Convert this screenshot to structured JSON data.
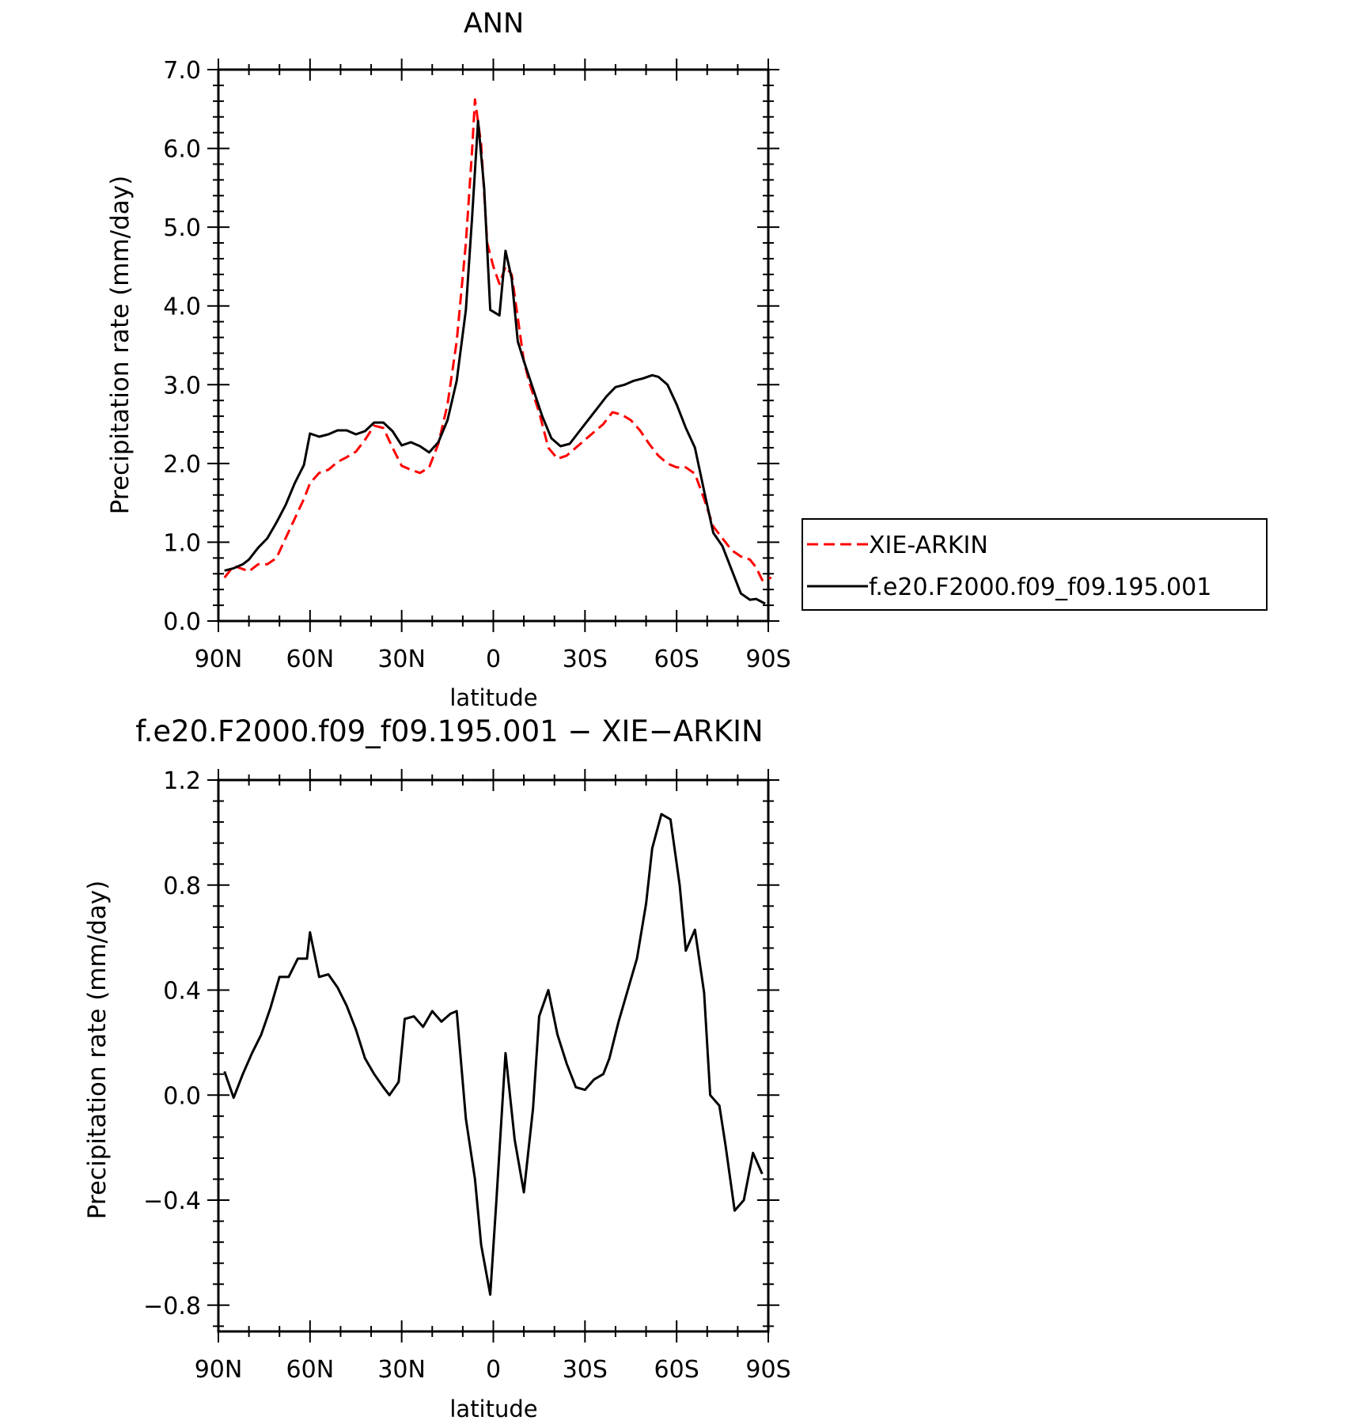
{
  "chart_data": [
    {
      "type": "line",
      "title": "ANN",
      "xlabel": "latitude",
      "ylabel": "Precipitation rate (mm/day)",
      "xlim": [
        90,
        -90
      ],
      "ylim": [
        0,
        7
      ],
      "x_tick_values": [
        90,
        60,
        30,
        0,
        -30,
        -60,
        -90
      ],
      "x_tick_labels": [
        "90N",
        "60N",
        "30N",
        "0",
        "30S",
        "60S",
        "90S"
      ],
      "y_tick_values": [
        0,
        1,
        2,
        3,
        4,
        5,
        6,
        7
      ],
      "y_tick_labels": [
        "0.0",
        "1.0",
        "2.0",
        "3.0",
        "4.0",
        "5.0",
        "6.0",
        "7.0"
      ],
      "legend_position": "right",
      "series": [
        {
          "name": "XIE-ARKIN",
          "color": "#ff0000",
          "dash": "dashed",
          "points": [
            [
              88,
              0.55
            ],
            [
              85,
              0.7
            ],
            [
              82,
              0.66
            ],
            [
              80,
              0.63
            ],
            [
              77,
              0.72
            ],
            [
              74,
              0.72
            ],
            [
              71,
              0.8
            ],
            [
              68,
              1.05
            ],
            [
              65,
              1.3
            ],
            [
              62,
              1.55
            ],
            [
              60,
              1.75
            ],
            [
              57,
              1.88
            ],
            [
              54,
              1.92
            ],
            [
              51,
              2.02
            ],
            [
              48,
              2.08
            ],
            [
              45,
              2.15
            ],
            [
              42,
              2.3
            ],
            [
              39,
              2.48
            ],
            [
              36,
              2.45
            ],
            [
              33,
              2.2
            ],
            [
              30,
              1.97
            ],
            [
              27,
              1.92
            ],
            [
              24,
              1.88
            ],
            [
              21,
              1.95
            ],
            [
              18,
              2.25
            ],
            [
              15,
              2.75
            ],
            [
              12,
              3.55
            ],
            [
              9,
              4.8
            ],
            [
              7,
              5.95
            ],
            [
              6,
              6.62
            ],
            [
              4,
              6.05
            ],
            [
              2,
              4.8
            ],
            [
              0,
              4.5
            ],
            [
              -2,
              4.28
            ],
            [
              -4,
              4.5
            ],
            [
              -6,
              4.4
            ],
            [
              -8,
              3.85
            ],
            [
              -10,
              3.3
            ],
            [
              -12,
              3.0
            ],
            [
              -15,
              2.65
            ],
            [
              -18,
              2.2
            ],
            [
              -21,
              2.06
            ],
            [
              -24,
              2.1
            ],
            [
              -27,
              2.2
            ],
            [
              -30,
              2.3
            ],
            [
              -33,
              2.4
            ],
            [
              -36,
              2.5
            ],
            [
              -39,
              2.65
            ],
            [
              -42,
              2.62
            ],
            [
              -45,
              2.55
            ],
            [
              -48,
              2.42
            ],
            [
              -51,
              2.25
            ],
            [
              -54,
              2.1
            ],
            [
              -57,
              2.0
            ],
            [
              -60,
              1.95
            ],
            [
              -63,
              1.95
            ],
            [
              -66,
              1.87
            ],
            [
              -69,
              1.55
            ],
            [
              -72,
              1.2
            ],
            [
              -75,
              1.05
            ],
            [
              -78,
              0.9
            ],
            [
              -81,
              0.82
            ],
            [
              -84,
              0.78
            ],
            [
              -86,
              0.68
            ],
            [
              -88,
              0.52
            ],
            [
              -91,
              0.55
            ]
          ]
        },
        {
          "name": "f.e20.F2000.f09_f09.195.001",
          "color": "#000000",
          "dash": "solid",
          "points": [
            [
              88,
              0.64
            ],
            [
              85,
              0.67
            ],
            [
              82,
              0.72
            ],
            [
              80,
              0.78
            ],
            [
              77,
              0.93
            ],
            [
              74,
              1.05
            ],
            [
              71,
              1.25
            ],
            [
              68,
              1.47
            ],
            [
              65,
              1.75
            ],
            [
              62,
              1.98
            ],
            [
              60,
              2.38
            ],
            [
              57,
              2.34
            ],
            [
              54,
              2.37
            ],
            [
              51,
              2.42
            ],
            [
              48,
              2.42
            ],
            [
              45,
              2.37
            ],
            [
              42,
              2.41
            ],
            [
              39,
              2.52
            ],
            [
              36,
              2.52
            ],
            [
              33,
              2.41
            ],
            [
              30,
              2.23
            ],
            [
              27,
              2.27
            ],
            [
              24,
              2.22
            ],
            [
              21,
              2.14
            ],
            [
              18,
              2.27
            ],
            [
              15,
              2.55
            ],
            [
              12,
              3.05
            ],
            [
              9,
              3.95
            ],
            [
              7,
              5.1
            ],
            [
              5,
              6.35
            ],
            [
              3,
              5.5
            ],
            [
              1,
              3.95
            ],
            [
              -2,
              3.88
            ],
            [
              -4,
              4.7
            ],
            [
              -6,
              4.35
            ],
            [
              -8,
              3.55
            ],
            [
              -10,
              3.3
            ],
            [
              -13,
              2.95
            ],
            [
              -16,
              2.6
            ],
            [
              -19,
              2.32
            ],
            [
              -22,
              2.22
            ],
            [
              -25,
              2.25
            ],
            [
              -28,
              2.4
            ],
            [
              -31,
              2.55
            ],
            [
              -34,
              2.7
            ],
            [
              -37,
              2.85
            ],
            [
              -40,
              2.97
            ],
            [
              -43,
              3.0
            ],
            [
              -46,
              3.05
            ],
            [
              -49,
              3.08
            ],
            [
              -52,
              3.12
            ],
            [
              -54,
              3.1
            ],
            [
              -57,
              3.0
            ],
            [
              -60,
              2.75
            ],
            [
              -63,
              2.45
            ],
            [
              -66,
              2.2
            ],
            [
              -69,
              1.65
            ],
            [
              -72,
              1.12
            ],
            [
              -75,
              0.95
            ],
            [
              -78,
              0.65
            ],
            [
              -81,
              0.35
            ],
            [
              -84,
              0.27
            ],
            [
              -86,
              0.28
            ],
            [
              -89,
              0.22
            ]
          ]
        }
      ]
    },
    {
      "type": "line",
      "title": "f.e20.F2000.f09_f09.195.001 − XIE−ARKIN",
      "xlabel": "latitude",
      "ylabel": "Precipitation rate (mm/day)",
      "xlim": [
        90,
        -90
      ],
      "ylim": [
        -0.9,
        1.2
      ],
      "x_tick_values": [
        90,
        60,
        30,
        0,
        -30,
        -60,
        -90
      ],
      "x_tick_labels": [
        "90N",
        "60N",
        "30N",
        "0",
        "30S",
        "60S",
        "90S"
      ],
      "y_tick_values": [
        -0.8,
        -0.4,
        0.0,
        0.4,
        0.8,
        1.2
      ],
      "y_tick_labels": [
        "−0.8",
        "−0.4",
        "0.0",
        "0.4",
        "0.8",
        "1.2"
      ],
      "series": [
        {
          "color": "#000000",
          "dash": "solid",
          "points": [
            [
              88,
              0.09
            ],
            [
              85,
              -0.01
            ],
            [
              82,
              0.08
            ],
            [
              79,
              0.16
            ],
            [
              76,
              0.23
            ],
            [
              73,
              0.33
            ],
            [
              70,
              0.45
            ],
            [
              67,
              0.45
            ],
            [
              64,
              0.52
            ],
            [
              61,
              0.52
            ],
            [
              60,
              0.62
            ],
            [
              57,
              0.45
            ],
            [
              54,
              0.46
            ],
            [
              51,
              0.41
            ],
            [
              48,
              0.34
            ],
            [
              45,
              0.25
            ],
            [
              42,
              0.14
            ],
            [
              39,
              0.08
            ],
            [
              36,
              0.03
            ],
            [
              34,
              0.0
            ],
            [
              31,
              0.05
            ],
            [
              29,
              0.29
            ],
            [
              26,
              0.3
            ],
            [
              23,
              0.26
            ],
            [
              20,
              0.32
            ],
            [
              17,
              0.28
            ],
            [
              14,
              0.31
            ],
            [
              12,
              0.32
            ],
            [
              9,
              -0.09
            ],
            [
              6,
              -0.32
            ],
            [
              4,
              -0.57
            ],
            [
              1,
              -0.76
            ],
            [
              -1,
              -0.4
            ],
            [
              -4,
              0.16
            ],
            [
              -7,
              -0.17
            ],
            [
              -10,
              -0.37
            ],
            [
              -13,
              -0.05
            ],
            [
              -15,
              0.3
            ],
            [
              -18,
              0.4
            ],
            [
              -21,
              0.23
            ],
            [
              -24,
              0.12
            ],
            [
              -27,
              0.03
            ],
            [
              -30,
              0.02
            ],
            [
              -33,
              0.06
            ],
            [
              -36,
              0.08
            ],
            [
              -38,
              0.14
            ],
            [
              -41,
              0.28
            ],
            [
              -44,
              0.4
            ],
            [
              -47,
              0.52
            ],
            [
              -50,
              0.73
            ],
            [
              -52,
              0.94
            ],
            [
              -55,
              1.07
            ],
            [
              -58,
              1.05
            ],
            [
              -61,
              0.8
            ],
            [
              -63,
              0.55
            ],
            [
              -66,
              0.63
            ],
            [
              -69,
              0.39
            ],
            [
              -71,
              0.0
            ],
            [
              -74,
              -0.04
            ],
            [
              -76,
              -0.19
            ],
            [
              -79,
              -0.44
            ],
            [
              -82,
              -0.4
            ],
            [
              -85,
              -0.22
            ],
            [
              -88,
              -0.3
            ]
          ]
        }
      ]
    }
  ]
}
